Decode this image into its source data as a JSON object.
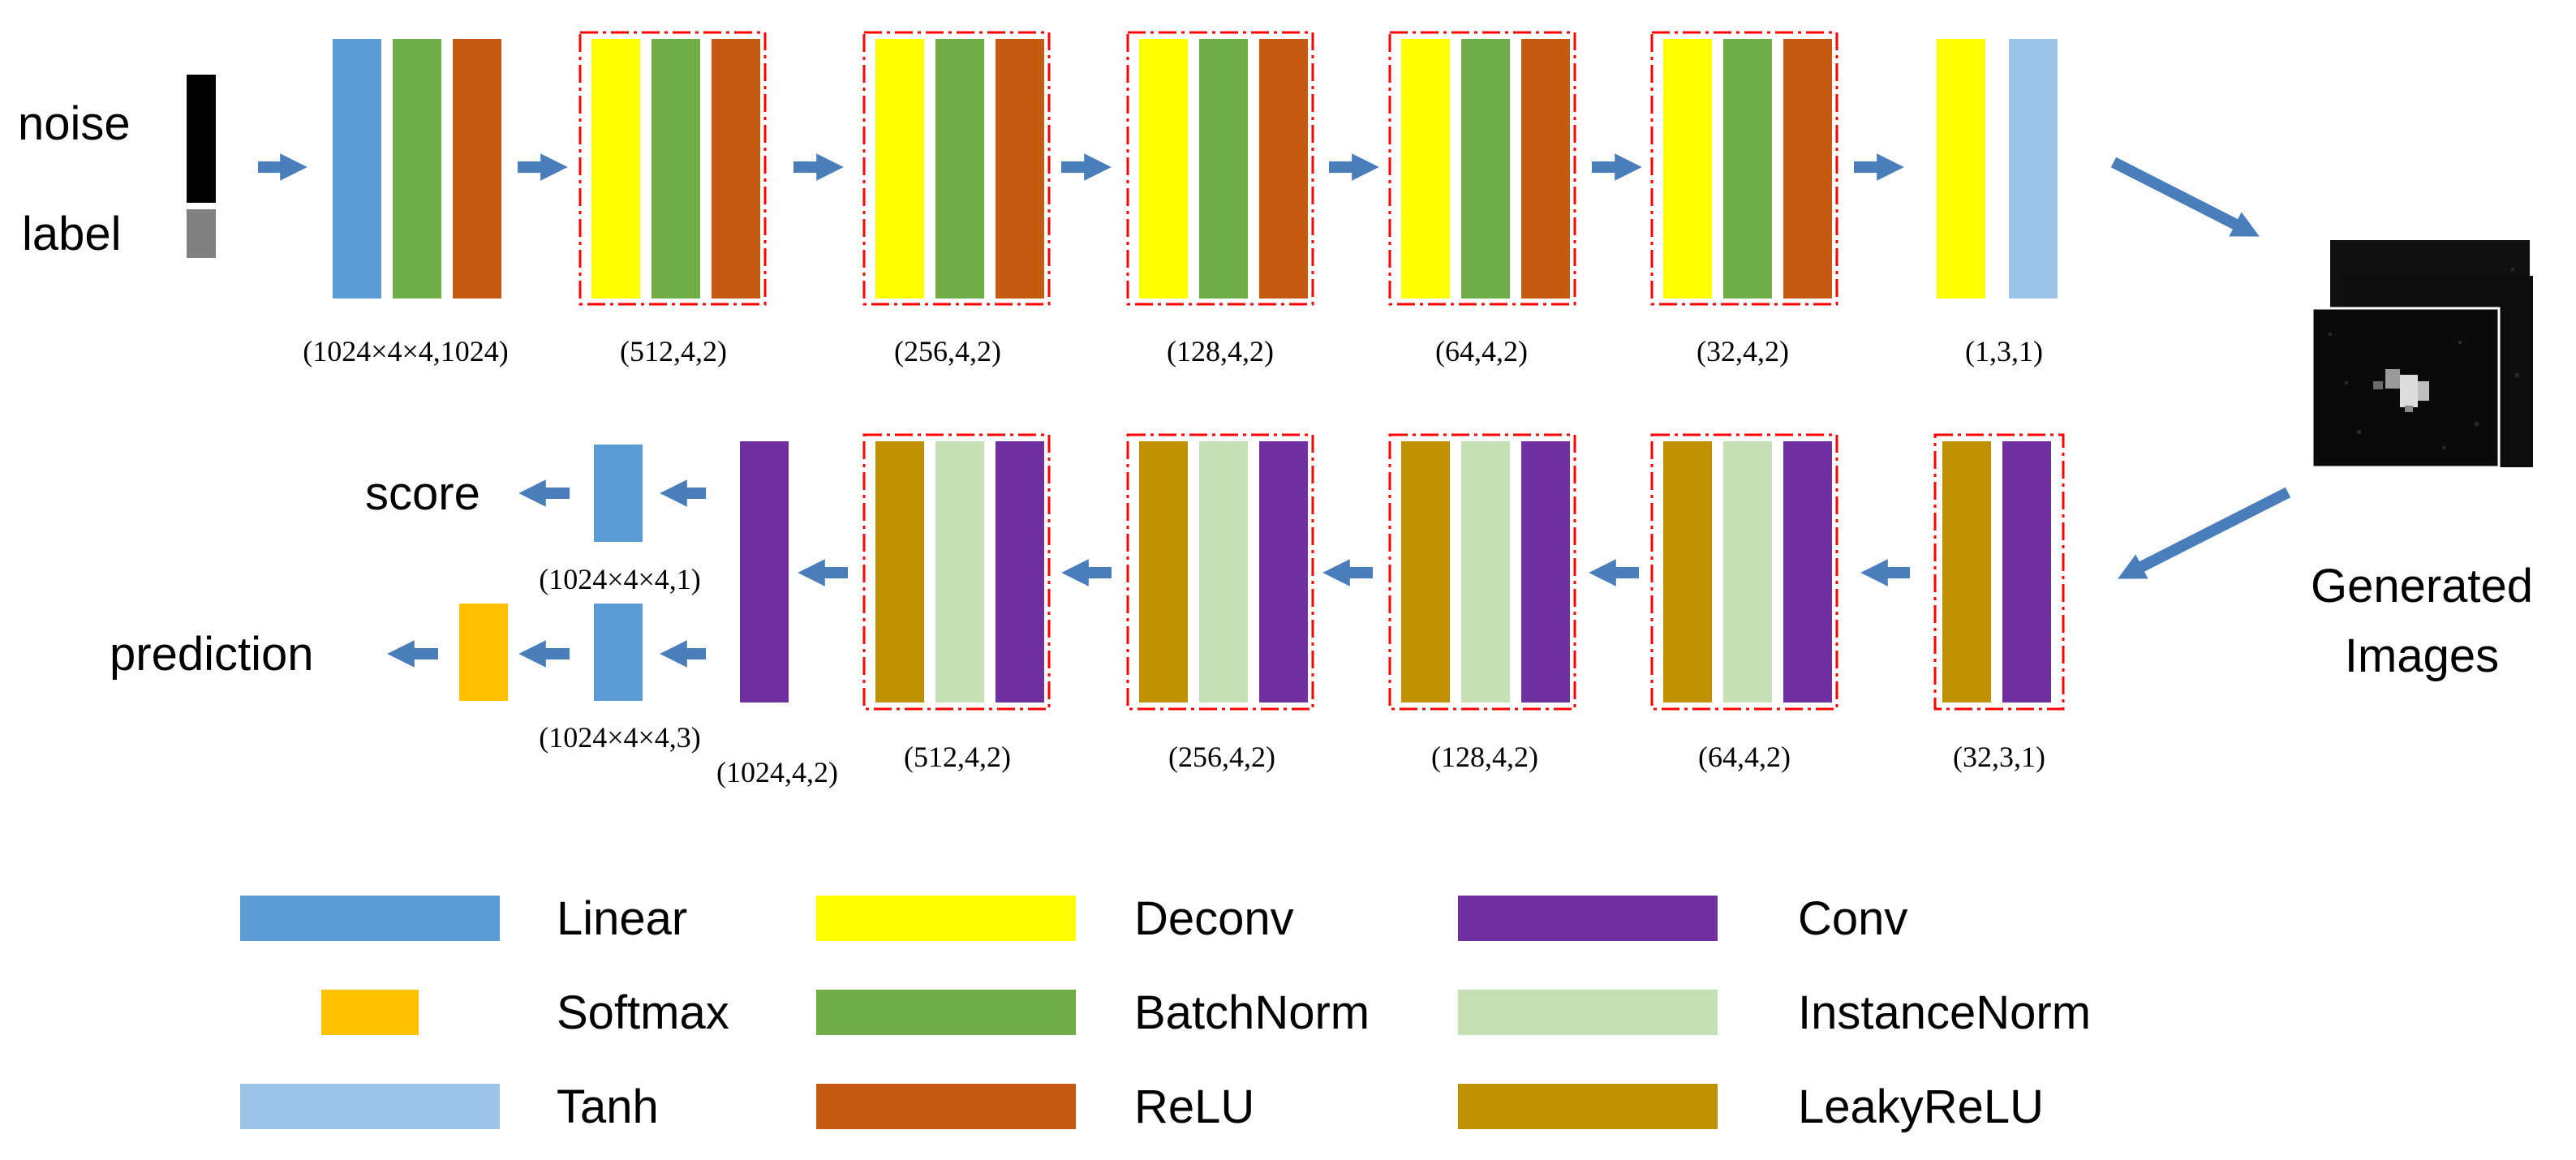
{
  "inputs": {
    "noise": "noise",
    "label": "label"
  },
  "generator": {
    "layer_labels": [
      "(1024×4×4,1024)",
      "(512,4,2)",
      "(256,4,2)",
      "(128,4,2)",
      "(64,4,2)",
      "(32,4,2)",
      "(1,3,1)"
    ]
  },
  "discriminator": {
    "layer_labels": [
      "(32,3,1)",
      "(64,4,2)",
      "(128,4,2)",
      "(256,4,2)",
      "(512,4,2)",
      "(1024,4,2)"
    ],
    "head_labels": [
      "(1024×4×4,1)",
      "(1024×4×4,3)"
    ]
  },
  "outputs": {
    "score": "score",
    "prediction": "prediction",
    "generated_line1": "Generated",
    "generated_line2": "Images"
  },
  "legend": {
    "items": [
      {
        "label": "Linear",
        "color": "#5b9bd5"
      },
      {
        "label": "Softmax",
        "color": "#ffc000"
      },
      {
        "label": "Tanh",
        "color": "#9dc3e6"
      },
      {
        "label": "Deconv",
        "color": "#ffff00"
      },
      {
        "label": "BatchNorm",
        "color": "#70ad47"
      },
      {
        "label": "ReLU",
        "color": "#c55a11"
      },
      {
        "label": "Conv",
        "color": "#7030a0"
      },
      {
        "label": "InstanceNorm",
        "color": "#c5e0b4"
      },
      {
        "label": "LeakyReLU",
        "color": "#bf9000"
      }
    ]
  },
  "colors": {
    "linear": "#5b9bd5",
    "softmax": "#ffc000",
    "tanh": "#9dc3e6",
    "deconv": "#ffff00",
    "batchnorm": "#70ad47",
    "relu": "#c55a11",
    "conv": "#7030a0",
    "instancenorm": "#c5e0b4",
    "leakyrelu": "#bf9000",
    "arrow": "#4a7ebb",
    "dashed_border": "#ff0000",
    "noise": "#000000",
    "label": "#808080"
  }
}
